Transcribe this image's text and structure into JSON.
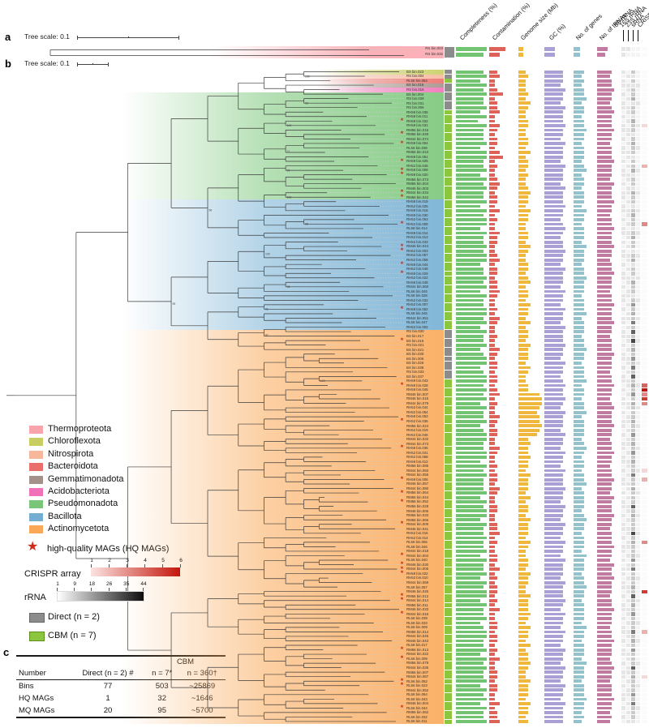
{
  "panel_a": {
    "label": "a",
    "scale_label": "Tree scale: 0.1",
    "phylum": "Thermoproteota",
    "tips": [
      {
        "name": "RS bin.003",
        "completeness": 9,
        "contamination": 5,
        "genome": 1,
        "gc": 3,
        "genes": 2,
        "trna": 4,
        "heat": [
          1,
          1,
          0,
          0
        ],
        "crispr": 0
      },
      {
        "name": "RS bin.032",
        "completeness": 8,
        "contamination": 3,
        "genome": 1,
        "gc": 3,
        "genes": 2,
        "trna": 3,
        "heat": [
          1,
          0,
          0,
          0
        ],
        "crispr": 0
      }
    ]
  },
  "panel_b": {
    "label": "b",
    "scale_label": "Tree scale: 0.1"
  },
  "panel_c": {
    "label": "c"
  },
  "headers": [
    "Completeness (%)",
    "Contamination (%)",
    "Genome size (Mb)",
    "GC (%)",
    "No. of genes",
    "No. of tRNAs",
    "5S rRNA",
    "16S rRNA",
    "23S rRNA",
    "sRNA",
    "CRISPR array"
  ],
  "phyla": [
    {
      "name": "Thermoproteota",
      "color": "#F9A3AB"
    },
    {
      "name": "Chloroflexota",
      "color": "#C9CE62"
    },
    {
      "name": "Nitrospirota",
      "color": "#F6B79C"
    },
    {
      "name": "Bacteroidota",
      "color": "#E9706A"
    },
    {
      "name": "Gemmatimonadota",
      "color": "#A4918A"
    },
    {
      "name": "Acidobacteriota",
      "color": "#F170B8"
    },
    {
      "name": "Pseudomonadota",
      "color": "#79C679"
    },
    {
      "name": "Bacillota",
      "color": "#74AFD3"
    },
    {
      "name": "Actinomycetota",
      "color": "#FAA857"
    }
  ],
  "star_legend": {
    "text": "high-quality MAGs (HQ MAGs)",
    "color": "#CF2B18"
  },
  "crispr_legend": {
    "label": "CRISPR array",
    "ticks": [
      "1",
      "2",
      "3",
      "4",
      "5",
      "6"
    ]
  },
  "rrna_legend": {
    "label": "rRNA",
    "ticks": [
      "1",
      "9",
      "18",
      "26",
      "35",
      "44"
    ]
  },
  "method_legend": [
    {
      "label": "Direct (n = 2)",
      "color": "#8C8C8C"
    },
    {
      "label": "CBM (n = 7)",
      "color": "#8CC63F"
    }
  ],
  "table": {
    "group_header": "CBM",
    "columns": [
      "Number",
      "Direct (n = 2) #",
      "n = 7*",
      "n = 360†"
    ],
    "rows": [
      [
        "Bins",
        "77",
        "503",
        "~25869"
      ],
      [
        "HQ MAGs",
        "1",
        "32",
        "~1646"
      ],
      [
        "MQ MAGs",
        "20",
        "95",
        "~5700"
      ]
    ]
  },
  "tree": {
    "support_values": [
      "100",
      "93",
      "100",
      "71",
      "99",
      "100",
      "98",
      "96",
      "100",
      "95",
      "91",
      "97",
      "99",
      "100"
    ],
    "phylum_spans": [
      {
        "phylum": "Chloroflexota",
        "count": 1
      },
      {
        "phylum": "Nitrospirota",
        "count": 1
      },
      {
        "phylum": "Bacteroidota",
        "count": 1
      },
      {
        "phylum": "Gemmatimonadota",
        "count": 1
      },
      {
        "phylum": "Acidobacteriota",
        "count": 1
      },
      {
        "phylum": "Pseudomonadota",
        "count": 24
      },
      {
        "phylum": "Bacillota",
        "count": 29
      },
      {
        "phylum": "Actinomycetota",
        "count": 88
      }
    ],
    "hq_indices": [
      11,
      14,
      16,
      20,
      22,
      23,
      27,
      28,
      34,
      39,
      40,
      43,
      45,
      53,
      60,
      70,
      78,
      84,
      91,
      94,
      96,
      101,
      108,
      110,
      111,
      112,
      117,
      118,
      121,
      129,
      131,
      136,
      137,
      142
    ],
    "tips": [
      "BS bin.023",
      "RS bin.004",
      "RL56 bin.054",
      "BS bin.016",
      "RS bin.016",
      "BS bin.004",
      "RS bin.039",
      "RS bin.031",
      "RS bin.006",
      "RH59 bin.035",
      "RH59 bin.011",
      "RH59 bin.032",
      "RH59 bin.031",
      "RM56 bin.016",
      "RM56 bin.049",
      "RM44 bin.074",
      "RH59 bin.004",
      "RL56 bin.036",
      "RM56 bin.010",
      "RH59 bin.051",
      "RH59 bin.025",
      "RH52 bin.045",
      "RH59 bin.009",
      "RH59 bin.020",
      "RM56 bin.073",
      "RM56 bin.004",
      "RM46 bin.003",
      "RM44 bin.034",
      "RM56 bin.042",
      "RH59 bin.019",
      "RH52 bin.025",
      "RH59 bin.016",
      "RH59 bin.030",
      "RH52 bin.063",
      "RH52 bin.008",
      "RL58 bin.014",
      "RH59 bin.014",
      "RH52 bin.013",
      "RH52 bin.043",
      "RM46 bin.044",
      "RH52 bin.003",
      "RH52 bin.057",
      "RH52 bin.058",
      "RH59 bin.044",
      "RH52 bin.048",
      "RH59 bin.029",
      "RH52 bin.022",
      "RH59 bin.048",
      "RM44 bin.060",
      "RL56 bin.045",
      "RL58 bin.028",
      "RH52 bin.032",
      "RH52 bin.007",
      "RH59 bin.052",
      "RL58 bin.045",
      "RM44 bin.051",
      "RL56 bin.047",
      "RH52 bin.002",
      "RS bin.030",
      "BS bin.017",
      "BS bin.015",
      "RS bin.021",
      "BS bin.021",
      "BS bin.030",
      "BS bin.006",
      "BS bin.026",
      "BS bin.038",
      "RS bin.033",
      "BS bin.037",
      "RH59 bin.043",
      "RH59 bin.028",
      "RH59 bin.045",
      "RM46 bin.007",
      "RM46 bin.015",
      "RM44 bin.079",
      "RH52 bin.044",
      "RH52 bin.054",
      "RH59 bin.053",
      "RH52 bin.036",
      "RM56 bin.024",
      "RH52 bin.019",
      "RH52 bin.046",
      "RM44 bin.032",
      "RM44 bin.073",
      "RH59 bin.036",
      "RH52 bin.041",
      "RH52 bin.068",
      "RH59 bin.012",
      "RM56 bin.085",
      "RM44 bin.050",
      "RM44 bin.056",
      "RH59 bin.005",
      "RM46 bin.057",
      "RM44 bin.080",
      "RM56 bin.064",
      "RM56 bin.044",
      "RM56 bin.052",
      "RM56 bin.028",
      "RM46 bin.006",
      "RM56 bin.033",
      "RM56 bin.066",
      "RM44 bin.009",
      "RM46 bin.041",
      "RH52 bin.016",
      "RH52 bin.014",
      "RL56 bin.055",
      "RL58 bin.046",
      "RM44 bin.018",
      "RM44 bin.004",
      "RL56 bin.040",
      "RM46 bin.030",
      "RM44 bin.005",
      "RH59 bin.022",
      "RH52 bin.010",
      "RM44 bin.069",
      "RL58 bin.057",
      "RM46 bin.026",
      "RM56 bin.012",
      "RM44 bin.014",
      "RM56 bin.011",
      "RM46 bin.033",
      "RM44 bin.016",
      "RL56 bin.039",
      "RL58 bin.033",
      "RL58 bin.009",
      "RM56 bin.014",
      "RM44 bin.046",
      "RM46 bin.043",
      "RL58 bin.017",
      "RM56 bin.013",
      "RM44 bin.022",
      "RL56 bin.009",
      "RM56 bin.079",
      "RM44 bin.035",
      "RM56 bin.007",
      "RM44 bin.067",
      "RL56 bin.052",
      "RL56 bin.023",
      "RM44 bin.052",
      "RL58 bin.064",
      "RL56 bin.043",
      "RM46 bin.004",
      "RL56 bin.044",
      "RM56 bin.062",
      "RL56 bin.032",
      "RL56 bin.011"
    ]
  },
  "track_colors": {
    "completeness": "#72C372",
    "contamination": "#DE6257",
    "genome": "#EFB83D",
    "gc": "#ABA0D5",
    "genes": "#94C2CC",
    "trna": "#C27BA0",
    "crispr_max_color": "#C4160C",
    "direct": "#8C8C8C",
    "cbm": "#8CC63F"
  },
  "chart_data": {
    "type": "table",
    "note": "Digit strings 0-9 encode per-MAG bar length as fraction of track maximum, estimated from pixels; order matches tree.tips",
    "track_max": {
      "completeness_pct": 100,
      "contamination_pct": 10,
      "genome_size_mb": 8,
      "gc_pct": 75,
      "genes": 8000,
      "trnas": 60,
      "rrna_count_max": 44,
      "crispr_array_max": 6
    },
    "tracks": {
      "completeness": "897989889796988897998897989889798997988989978898979889989798897899789989897988978998899798988897989979889889798897989979889789988979898897989798",
      "contamination": "231124122311321221341211232122131211322112312212232112132112113212212212312113212211321121221321122112231211221312122121311221221213112212211312",
      "genome": "232223243223322332423323223433243322332432233234233243324233243332432233899878898734334332433324233243332432233243322433343243324233432243332433",
      "gc": "666576657666766576665766657666766567656676657666576657665766676657665676676576665766576657666766576657665766576665766676576657665766576657665766",
      "genes": "434344534434454434443453443444354434443544434454443444534443445443444534434453444434543443445344443454434443544434454434444354434443544434445443",
      "trna": "656676656766676656667666576667665667666766566766656676667665666766656676656766676656676656676657666766566676657667666566766656676665676656667665",
      "r5s": "101101011010110101101011010110110101101011010110101101011011010110101101011010110101101101011010110101101011010110110101101011010110101101011010",
      "r16s": "010110101101011010110101101101011010110101101011011010110101101011010110101101101011010110101101011010110110101101011010110101101011011010110101",
      "r23s": "212122312213221232212231221322123221232212312213221242325262723242526232423222322423242322522322262322272322242522232623242225232422262322242522",
      "srna": "000100010000100001000010000100010000100001000010000100010000100001000010000100010000100001000010000100010000100001000010000100010000100001000010",
      "crispr": "000000000000100000000200000000000030000000000000000000000000000000000046353000000000000001020000000000000300000000005000000002000000000100000000"
    }
  }
}
